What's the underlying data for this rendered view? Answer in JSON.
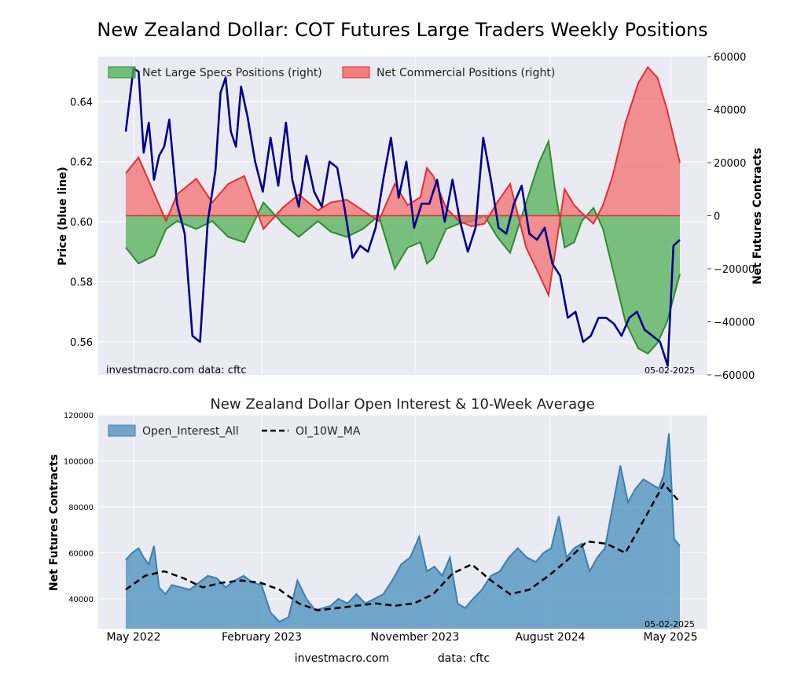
{
  "chart_data": [
    {
      "type": "line",
      "title": "New Zealand Dollar: COT Futures Large Traders Weekly Positions",
      "ylabel_left": "Price (blue line)",
      "ylabel_right": "Net Futures Contracts",
      "ylim_left": [
        0.549,
        0.655
      ],
      "ylim_right": [
        -60000,
        60000
      ],
      "yticks_left": [
        "0.56",
        "0.58",
        "0.60",
        "0.62",
        "0.64"
      ],
      "yticks_right": [
        "60000",
        "40000",
        "20000",
        "0",
        "−20000",
        "−40000",
        "−60000"
      ],
      "watermark_left": "investmacro.com",
      "watermark_data": "data: cftc",
      "date_label": "05-02-2025",
      "grid": true,
      "legend_position": "top-left",
      "colors": {
        "price": "#00008b",
        "specs_fill": "#4caf50",
        "specs_line": "#2e8b2e",
        "comm_fill": "#f26b6b",
        "comm_line": "#e03030",
        "background": "#eaeaf2"
      },
      "series": [
        {
          "name": "Net Large Specs Positions (right)",
          "x": [
            0,
            20,
            45,
            63,
            80,
            110,
            135,
            160,
            185,
            215,
            245,
            270,
            300,
            320,
            345,
            370,
            395,
            420,
            440,
            460,
            470,
            480,
            500,
            520,
            540,
            560,
            580,
            600,
            625,
            645,
            660,
            670,
            685,
            700,
            712,
            730,
            745,
            760,
            780,
            800,
            815,
            830,
            845,
            865
          ],
          "values": [
            -12000,
            -18000,
            -15000,
            -5000,
            -2000,
            -5000,
            -2000,
            -8000,
            -10000,
            5000,
            -3000,
            -8000,
            -2000,
            -6000,
            -8000,
            -5000,
            0,
            -20000,
            -12000,
            -10000,
            -18000,
            -16000,
            -5000,
            -3000,
            -2000,
            0,
            -8000,
            -14000,
            5000,
            20000,
            28000,
            10000,
            -12000,
            -10000,
            -2000,
            3000,
            -5000,
            -20000,
            -40000,
            -50000,
            -52000,
            -48000,
            -40000,
            -22000
          ]
        },
        {
          "name": "Net Commercial Positions (right)",
          "x": [
            0,
            20,
            45,
            63,
            80,
            110,
            135,
            160,
            185,
            215,
            245,
            270,
            300,
            320,
            345,
            370,
            395,
            420,
            440,
            460,
            470,
            480,
            500,
            520,
            540,
            560,
            580,
            600,
            625,
            645,
            660,
            670,
            685,
            700,
            712,
            730,
            745,
            760,
            780,
            800,
            815,
            830,
            845,
            865
          ],
          "values": [
            16000,
            22000,
            8000,
            -2000,
            8000,
            14000,
            5000,
            12000,
            15000,
            -5000,
            3000,
            8000,
            2000,
            5000,
            6000,
            2000,
            -2000,
            12000,
            4000,
            7000,
            18000,
            15000,
            3000,
            -2000,
            -4000,
            -3000,
            5000,
            12000,
            -12000,
            -22000,
            -30000,
            -14000,
            10000,
            4000,
            1000,
            -3000,
            4000,
            15000,
            35000,
            50000,
            56000,
            52000,
            40000,
            20000
          ]
        },
        {
          "name": "Price",
          "x": [
            0,
            12,
            20,
            28,
            36,
            44,
            52,
            60,
            68,
            80,
            92,
            104,
            116,
            128,
            140,
            148,
            156,
            164,
            172,
            180,
            190,
            202,
            214,
            226,
            238,
            250,
            260,
            270,
            282,
            294,
            306,
            318,
            330,
            342,
            354,
            366,
            378,
            390,
            402,
            414,
            426,
            438,
            450,
            462,
            474,
            486,
            498,
            510,
            522,
            534,
            546,
            558,
            570,
            582,
            594,
            606,
            618,
            630,
            642,
            654,
            666,
            678,
            690,
            702,
            714,
            726,
            738,
            750,
            762,
            774,
            786,
            798,
            810,
            822,
            834,
            846,
            855,
            865
          ],
          "values": [
            0.63,
            0.651,
            0.65,
            0.623,
            0.633,
            0.614,
            0.622,
            0.625,
            0.634,
            0.606,
            0.596,
            0.562,
            0.56,
            0.6,
            0.617,
            0.643,
            0.648,
            0.63,
            0.625,
            0.645,
            0.635,
            0.62,
            0.61,
            0.628,
            0.612,
            0.633,
            0.614,
            0.605,
            0.622,
            0.61,
            0.605,
            0.62,
            0.618,
            0.604,
            0.588,
            0.592,
            0.59,
            0.598,
            0.614,
            0.628,
            0.608,
            0.62,
            0.598,
            0.606,
            0.606,
            0.614,
            0.6,
            0.614,
            0.6,
            0.59,
            0.598,
            0.628,
            0.614,
            0.598,
            0.596,
            0.606,
            0.612,
            0.596,
            0.594,
            0.598,
            0.586,
            0.582,
            0.568,
            0.57,
            0.56,
            0.562,
            0.568,
            0.568,
            0.566,
            0.562,
            0.568,
            0.57,
            0.564,
            0.562,
            0.56,
            0.552,
            0.592,
            0.594
          ]
        }
      ]
    },
    {
      "type": "area",
      "title": "New Zealand Dollar Open Interest & 10-Week Average",
      "ylabel": "Net Futures Contracts",
      "ylim": [
        27000,
        120000
      ],
      "yticks": [
        "40000",
        "60000",
        "80000",
        "100000",
        "120000"
      ],
      "date_label": "05-02-2025",
      "grid": true,
      "legend_position": "top-left",
      "colors": {
        "area": "#5b9ac2",
        "area_line": "#3a7fb0",
        "ma": "#000000",
        "background": "#eaeaf2"
      },
      "series": [
        {
          "name": "Open_Interest_All",
          "x": [
            0,
            10,
            20,
            28,
            36,
            44,
            52,
            62,
            72,
            86,
            100,
            114,
            128,
            142,
            156,
            170,
            184,
            198,
            212,
            226,
            240,
            254,
            268,
            282,
            296,
            308,
            320,
            332,
            346,
            360,
            374,
            388,
            402,
            416,
            430,
            444,
            458,
            470,
            482,
            494,
            506,
            518,
            530,
            542,
            556,
            570,
            584,
            598,
            612,
            626,
            640,
            652,
            664,
            676,
            688,
            700,
            712,
            724,
            736,
            748,
            760,
            772,
            784,
            796,
            808,
            820,
            832,
            840,
            848,
            856,
            865
          ],
          "values": [
            57000,
            60000,
            62000,
            58000,
            55000,
            63000,
            45000,
            42000,
            46000,
            45000,
            44000,
            47000,
            50000,
            49000,
            45000,
            48000,
            50000,
            47000,
            46000,
            34000,
            30000,
            32000,
            48000,
            40000,
            35000,
            36000,
            37000,
            40000,
            38000,
            42000,
            38000,
            40000,
            42000,
            48000,
            55000,
            58000,
            67000,
            52000,
            54000,
            50000,
            58000,
            38000,
            36000,
            40000,
            44000,
            50000,
            52000,
            58000,
            62000,
            58000,
            56000,
            60000,
            62000,
            76000,
            58000,
            62000,
            64000,
            52000,
            58000,
            62000,
            80000,
            98000,
            82000,
            88000,
            92000,
            90000,
            88000,
            94000,
            112000,
            66000,
            63000
          ]
        },
        {
          "name": "OI_10W_MA",
          "x": [
            0,
            30,
            60,
            90,
            120,
            150,
            180,
            210,
            240,
            270,
            300,
            330,
            360,
            390,
            420,
            450,
            480,
            510,
            540,
            570,
            600,
            630,
            660,
            690,
            720,
            750,
            780,
            810,
            840,
            865
          ],
          "values": [
            44000,
            50000,
            52000,
            49000,
            45000,
            47000,
            48000,
            47000,
            44000,
            38000,
            35000,
            36000,
            37000,
            38000,
            37000,
            38000,
            42000,
            51000,
            55000,
            48000,
            42000,
            44000,
            50000,
            57000,
            65000,
            64000,
            60000,
            75000,
            90000,
            82000
          ]
        }
      ]
    }
  ],
  "x_axis": {
    "ticks": [
      "May 2022",
      "February 2023",
      "November 2023",
      "August 2024",
      "May 2025"
    ]
  },
  "footer": {
    "site": "investmacro.com",
    "data": "data: cftc"
  }
}
